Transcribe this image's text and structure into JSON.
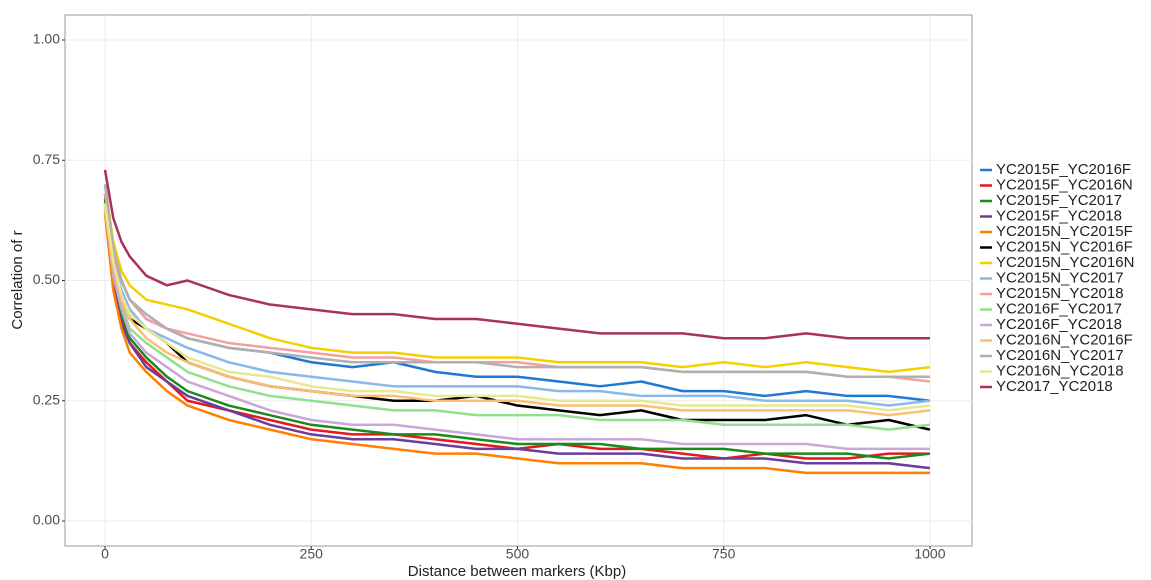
{
  "chart_data": {
    "type": "line",
    "xlabel": "Distance between markers (Kbp)",
    "ylabel": "Correlation of r",
    "x": [
      0,
      10,
      20,
      30,
      50,
      75,
      100,
      150,
      200,
      250,
      300,
      350,
      400,
      450,
      500,
      550,
      600,
      650,
      700,
      750,
      800,
      850,
      900,
      950,
      1000
    ],
    "xlim": [
      -48.5,
      1051
    ],
    "ylim": [
      -0.052,
      1.052
    ],
    "xticks": [
      0,
      250,
      500,
      750,
      1000
    ],
    "yticks": [
      {
        "value": 0,
        "label": "0.00"
      },
      {
        "value": 0.25,
        "label": "0.25"
      },
      {
        "value": 0.5,
        "label": "0.50"
      },
      {
        "value": 0.75,
        "label": "0.75"
      },
      {
        "value": 1,
        "label": "1.00"
      }
    ],
    "grid": true,
    "legend": "right",
    "series": [
      {
        "name": "YC2015F_YC2016F",
        "color": "#1f78d1",
        "values": [
          0.66,
          0.55,
          0.5,
          0.46,
          0.42,
          0.4,
          0.38,
          0.36,
          0.35,
          0.33,
          0.32,
          0.33,
          0.31,
          0.3,
          0.3,
          0.29,
          0.28,
          0.29,
          0.27,
          0.27,
          0.26,
          0.27,
          0.26,
          0.26,
          0.25
        ]
      },
      {
        "name": "YC2015F_YC2016N",
        "color": "#e31a1c",
        "values": [
          0.66,
          0.5,
          0.42,
          0.37,
          0.33,
          0.29,
          0.25,
          0.23,
          0.21,
          0.19,
          0.18,
          0.18,
          0.17,
          0.16,
          0.15,
          0.16,
          0.15,
          0.15,
          0.14,
          0.13,
          0.14,
          0.13,
          0.13,
          0.14,
          0.14
        ]
      },
      {
        "name": "YC2015F_YC2017",
        "color": "#1a8a1a",
        "values": [
          0.67,
          0.51,
          0.43,
          0.38,
          0.34,
          0.3,
          0.27,
          0.24,
          0.22,
          0.2,
          0.19,
          0.18,
          0.18,
          0.17,
          0.16,
          0.16,
          0.16,
          0.15,
          0.15,
          0.15,
          0.14,
          0.14,
          0.14,
          0.13,
          0.14
        ]
      },
      {
        "name": "YC2015F_YC2018",
        "color": "#6a3d9a",
        "values": [
          0.65,
          0.49,
          0.41,
          0.37,
          0.32,
          0.29,
          0.26,
          0.23,
          0.2,
          0.18,
          0.17,
          0.17,
          0.16,
          0.15,
          0.15,
          0.14,
          0.14,
          0.14,
          0.13,
          0.13,
          0.13,
          0.12,
          0.12,
          0.12,
          0.11
        ]
      },
      {
        "name": "YC2015N_YC2015F",
        "color": "#ff7f00",
        "values": [
          0.64,
          0.48,
          0.4,
          0.35,
          0.31,
          0.27,
          0.24,
          0.21,
          0.19,
          0.17,
          0.16,
          0.15,
          0.14,
          0.14,
          0.13,
          0.12,
          0.12,
          0.12,
          0.11,
          0.11,
          0.11,
          0.1,
          0.1,
          0.1,
          0.1
        ]
      },
      {
        "name": "YC2015N_YC2016F",
        "color": "#000000",
        "values": [
          0.68,
          0.53,
          0.46,
          0.42,
          0.4,
          0.37,
          0.33,
          0.3,
          0.28,
          0.27,
          0.26,
          0.25,
          0.25,
          0.26,
          0.24,
          0.23,
          0.22,
          0.23,
          0.21,
          0.21,
          0.21,
          0.22,
          0.2,
          0.21,
          0.19
        ]
      },
      {
        "name": "YC2015N_YC2016N",
        "color": "#f5d000",
        "values": [
          0.7,
          0.58,
          0.52,
          0.49,
          0.46,
          0.45,
          0.44,
          0.41,
          0.38,
          0.36,
          0.35,
          0.35,
          0.34,
          0.34,
          0.34,
          0.33,
          0.33,
          0.33,
          0.32,
          0.33,
          0.32,
          0.33,
          0.32,
          0.31,
          0.32
        ]
      },
      {
        "name": "YC2015N_YC2017",
        "color": "#8ab8e8",
        "values": [
          0.66,
          0.54,
          0.48,
          0.44,
          0.4,
          0.38,
          0.36,
          0.33,
          0.31,
          0.3,
          0.29,
          0.28,
          0.28,
          0.28,
          0.28,
          0.27,
          0.27,
          0.26,
          0.26,
          0.26,
          0.25,
          0.25,
          0.25,
          0.24,
          0.25
        ]
      },
      {
        "name": "YC2015N_YC2018",
        "color": "#f4a0a0",
        "values": [
          0.68,
          0.56,
          0.5,
          0.46,
          0.42,
          0.4,
          0.39,
          0.37,
          0.36,
          0.35,
          0.34,
          0.34,
          0.33,
          0.33,
          0.33,
          0.32,
          0.32,
          0.32,
          0.31,
          0.31,
          0.31,
          0.31,
          0.3,
          0.3,
          0.29
        ]
      },
      {
        "name": "YC2016F_YC2017",
        "color": "#90e090",
        "values": [
          0.65,
          0.52,
          0.45,
          0.4,
          0.37,
          0.34,
          0.31,
          0.28,
          0.26,
          0.25,
          0.24,
          0.23,
          0.23,
          0.22,
          0.22,
          0.22,
          0.21,
          0.21,
          0.21,
          0.2,
          0.2,
          0.2,
          0.2,
          0.19,
          0.2
        ]
      },
      {
        "name": "YC2016F_YC2018",
        "color": "#c8a8d8",
        "values": [
          0.66,
          0.51,
          0.44,
          0.39,
          0.35,
          0.32,
          0.29,
          0.26,
          0.23,
          0.21,
          0.2,
          0.2,
          0.19,
          0.18,
          0.17,
          0.17,
          0.17,
          0.17,
          0.16,
          0.16,
          0.16,
          0.16,
          0.15,
          0.15,
          0.15
        ]
      },
      {
        "name": "YC2016N_YC2016F",
        "color": "#fdbf6f",
        "values": [
          0.65,
          0.53,
          0.46,
          0.42,
          0.38,
          0.35,
          0.33,
          0.3,
          0.28,
          0.27,
          0.26,
          0.26,
          0.25,
          0.25,
          0.25,
          0.24,
          0.24,
          0.24,
          0.23,
          0.23,
          0.23,
          0.23,
          0.23,
          0.22,
          0.23
        ]
      },
      {
        "name": "YC2016N_YC2017",
        "color": "#b0b0b0",
        "values": [
          0.7,
          0.57,
          0.5,
          0.46,
          0.43,
          0.4,
          0.38,
          0.36,
          0.35,
          0.34,
          0.33,
          0.33,
          0.33,
          0.33,
          0.32,
          0.32,
          0.32,
          0.32,
          0.31,
          0.31,
          0.31,
          0.31,
          0.3,
          0.3,
          0.3
        ]
      },
      {
        "name": "YC2016N_YC2018",
        "color": "#e8e890",
        "values": [
          0.66,
          0.54,
          0.47,
          0.43,
          0.4,
          0.37,
          0.34,
          0.31,
          0.3,
          0.28,
          0.27,
          0.27,
          0.26,
          0.26,
          0.26,
          0.25,
          0.25,
          0.25,
          0.24,
          0.24,
          0.24,
          0.24,
          0.24,
          0.23,
          0.24
        ]
      },
      {
        "name": "YC2017_YC2018",
        "color": "#a8325e",
        "values": [
          0.73,
          0.63,
          0.58,
          0.55,
          0.51,
          0.49,
          0.5,
          0.47,
          0.45,
          0.44,
          0.43,
          0.43,
          0.42,
          0.42,
          0.41,
          0.4,
          0.39,
          0.39,
          0.39,
          0.38,
          0.38,
          0.39,
          0.38,
          0.38,
          0.38
        ]
      }
    ]
  }
}
